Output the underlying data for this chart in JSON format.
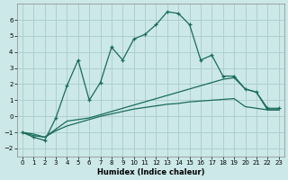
{
  "xlabel": "Humidex (Indice chaleur)",
  "bg_color": "#cce8e8",
  "grid_color": "#aacccc",
  "line_color": "#1a6b5a",
  "xlim": [
    -0.5,
    23.5
  ],
  "ylim": [
    -2.5,
    7.0
  ],
  "yticks": [
    -2,
    -1,
    0,
    1,
    2,
    3,
    4,
    5,
    6
  ],
  "xticks": [
    0,
    1,
    2,
    3,
    4,
    5,
    6,
    7,
    8,
    9,
    10,
    11,
    12,
    13,
    14,
    15,
    16,
    17,
    18,
    19,
    20,
    21,
    22,
    23
  ],
  "series1_x": [
    0,
    1,
    2,
    3,
    4,
    5,
    6,
    7,
    8,
    9,
    10,
    11,
    12,
    13,
    14,
    15,
    16,
    17,
    18,
    19,
    20,
    21,
    22,
    23
  ],
  "series1_y": [
    -1.0,
    -1.3,
    -1.5,
    -0.1,
    1.9,
    3.5,
    1.0,
    2.1,
    4.3,
    3.5,
    4.8,
    5.1,
    5.7,
    6.5,
    6.4,
    5.7,
    3.5,
    3.8,
    2.5,
    2.5,
    1.7,
    1.5,
    0.5,
    0.5
  ],
  "series2_x": [
    0,
    1,
    2,
    3,
    4,
    5,
    6,
    7,
    8,
    9,
    10,
    11,
    12,
    13,
    14,
    15,
    16,
    17,
    18,
    19,
    20,
    21,
    22,
    23
  ],
  "series2_y": [
    -1.0,
    -1.2,
    -1.3,
    -0.8,
    -0.3,
    -0.2,
    -0.1,
    0.1,
    0.3,
    0.5,
    0.7,
    0.9,
    1.1,
    1.3,
    1.5,
    1.7,
    1.9,
    2.1,
    2.3,
    2.4,
    1.7,
    1.5,
    0.4,
    0.4
  ],
  "series3_x": [
    0,
    1,
    2,
    3,
    4,
    5,
    6,
    7,
    8,
    9,
    10,
    11,
    12,
    13,
    14,
    15,
    16,
    17,
    18,
    19,
    20,
    21,
    22,
    23
  ],
  "series3_y": [
    -1.0,
    -1.1,
    -1.3,
    -0.9,
    -0.6,
    -0.4,
    -0.2,
    0.0,
    0.15,
    0.3,
    0.45,
    0.55,
    0.65,
    0.75,
    0.8,
    0.9,
    0.95,
    1.0,
    1.05,
    1.1,
    0.6,
    0.5,
    0.4,
    0.4
  ]
}
